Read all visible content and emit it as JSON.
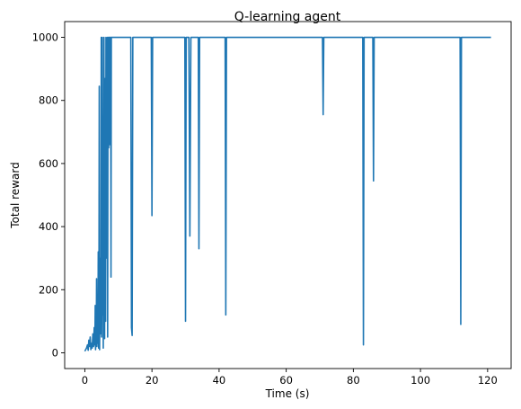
{
  "chart_data": {
    "type": "line",
    "title": "Q-learning agent",
    "xlabel": "Time (s)",
    "ylabel": "Total reward",
    "xlim": [
      -6,
      127
    ],
    "ylim": [
      -50,
      1050
    ],
    "xticks": [
      0,
      20,
      40,
      60,
      80,
      100,
      120
    ],
    "yticks": [
      0,
      200,
      400,
      600,
      800,
      1000
    ],
    "grid": false,
    "colors": {
      "line": "#1f77b4",
      "axis": "#000000",
      "background": "#ffffff"
    },
    "series": [
      {
        "x": [
          0,
          0.5,
          0.8,
          1.0,
          1.2,
          1.4,
          1.6,
          1.8,
          2.0,
          2.2,
          2.4,
          2.6,
          2.8,
          3.0,
          3.1,
          3.2,
          3.3,
          3.4,
          3.5,
          3.6,
          3.7,
          3.8,
          3.9,
          4.0,
          4.1,
          4.2,
          4.3,
          4.4,
          4.5,
          4.6,
          4.7,
          4.8,
          4.9,
          5.0,
          5.1,
          5.2,
          5.3,
          5.4,
          5.5,
          5.6,
          5.7,
          5.8,
          5.9,
          6.0,
          6.1,
          6.2,
          6.3,
          6.4,
          6.5,
          6.6,
          6.7,
          6.8,
          6.9,
          7.0,
          7.1,
          7.2,
          7.3,
          7.4,
          7.5,
          7.6,
          7.7,
          7.8,
          7.9,
          8.0,
          8.1,
          8.2,
          8.3,
          8.4,
          8.5,
          8.6,
          8.7,
          8.8,
          8.9,
          9.0,
          9.1,
          9.2,
          9.3,
          9.4,
          9.5,
          9.6,
          9.7,
          9.8,
          9.9,
          10.0,
          10.1,
          10.2,
          10.3,
          10.5,
          10.8,
          11.2,
          12.0,
          13.0,
          13.5,
          13.7,
          13.9,
          14.1,
          14.3,
          15,
          17,
          19.8,
          20.0,
          20.2,
          20.4,
          22,
          25,
          28,
          29.8,
          30.0,
          30.2,
          30.4,
          31.0,
          31.3,
          31.6,
          32.0,
          33,
          33.8,
          34.0,
          34.2,
          34.5,
          36,
          38,
          40,
          41.8,
          42.0,
          42.2,
          42.5,
          45,
          50,
          55,
          60,
          65,
          70,
          70.8,
          71.0,
          71.2,
          71.5,
          75,
          80,
          82.5,
          82.8,
          83.0,
          83.2,
          83.5,
          84,
          85,
          85.8,
          86.0,
          86.2,
          86.5,
          90,
          95,
          100,
          105,
          110,
          111.8,
          112.0,
          112.2,
          112.5,
          115,
          118,
          121
        ],
        "y": [
          5,
          15,
          25,
          8,
          40,
          20,
          50,
          10,
          30,
          15,
          60,
          20,
          80,
          25,
          150,
          10,
          60,
          30,
          235,
          20,
          100,
          180,
          30,
          320,
          15,
          120,
          845,
          10,
          200,
          60,
          300,
          100,
          1000,
          50,
          250,
          1000,
          120,
          600,
          15,
          400,
          1000,
          200,
          45,
          700,
          870,
          100,
          1000,
          450,
          980,
          300,
          1000,
          50,
          860,
          1000,
          650,
          1000,
          1000,
          660,
          1000,
          1000,
          1000,
          240,
          1000,
          1000,
          1000,
          1000,
          1000,
          1000,
          1000,
          1000,
          1000,
          1000,
          1000,
          1000,
          1000,
          1000,
          1000,
          1000,
          1000,
          1000,
          1000,
          1000,
          1000,
          1000,
          1000,
          1000,
          1000,
          1000,
          1000,
          1000,
          1000,
          1000,
          1000,
          1000,
          80,
          55,
          1000,
          1000,
          1000,
          1000,
          435,
          1000,
          1000,
          1000,
          1000,
          1000,
          1000,
          100,
          1000,
          1000,
          1000,
          370,
          1000,
          1000,
          1000,
          1000,
          330,
          1000,
          1000,
          1000,
          1000,
          1000,
          1000,
          120,
          1000,
          1000,
          1000,
          1000,
          1000,
          1000,
          1000,
          1000,
          1000,
          755,
          1000,
          1000,
          1000,
          1000,
          1000,
          1000,
          25,
          1000,
          1000,
          1000,
          1000,
          1000,
          545,
          1000,
          1000,
          1000,
          1000,
          1000,
          1000,
          1000,
          1000,
          90,
          1000,
          1000,
          1000,
          1000,
          1000
        ]
      }
    ]
  }
}
